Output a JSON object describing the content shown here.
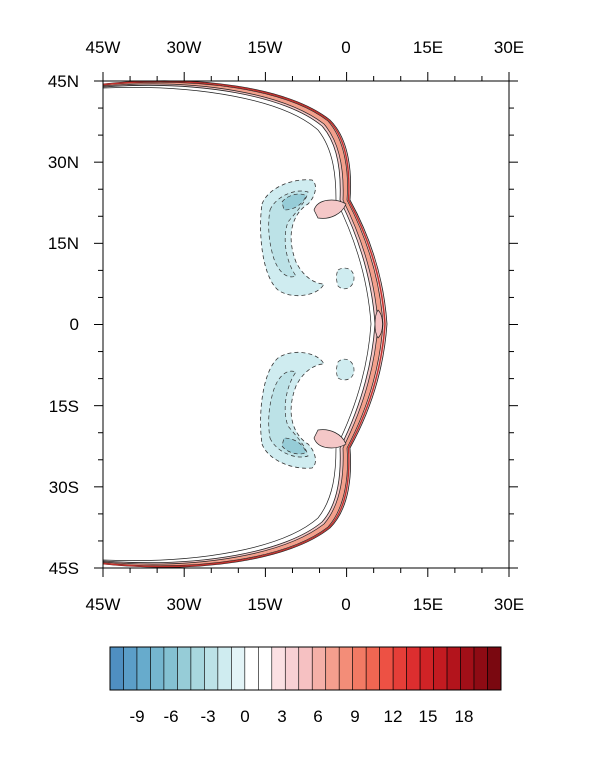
{
  "map": {
    "top_lon_labels": [
      "45W",
      "30W",
      "15W",
      "0",
      "15E",
      "30E"
    ],
    "bottom_lon_labels": [
      "45W",
      "30W",
      "15W",
      "0",
      "15E",
      "30E"
    ],
    "left_lat_labels": [
      "45N",
      "30N",
      "15N",
      "0",
      "15S",
      "30S",
      "45S"
    ],
    "lon_range": [
      -45,
      30
    ],
    "lat_range": [
      -45,
      45
    ],
    "projection": "cylindrical-equidistant",
    "contour_style": "filled with black line contours; negative contours dashed"
  },
  "colorbar": {
    "tick_labels": [
      "-9",
      "-6",
      "-3",
      "0",
      "3",
      "6",
      "9",
      "12",
      "15",
      "18"
    ],
    "levels_min": -10,
    "levels_max": 21,
    "colors": [
      "#4f8fc1",
      "#5b9ec8",
      "#67abcc",
      "#75b6cf",
      "#84c1d2",
      "#96ccd7",
      "#a8d7de",
      "#bce2e7",
      "#cfecf0",
      "#e3f4f7",
      "#ffffff",
      "#ffffff",
      "#fbe0e3",
      "#f8d0d4",
      "#f6c1c2",
      "#f5b0a8",
      "#f49f8e",
      "#f38d78",
      "#f27a64",
      "#f06652",
      "#ed5144",
      "#e53e38",
      "#dc2e2f",
      "#d02326",
      "#c31b21",
      "#b3141c",
      "#a10f18",
      "#8e0b14",
      "#7a0810"
    ]
  }
}
